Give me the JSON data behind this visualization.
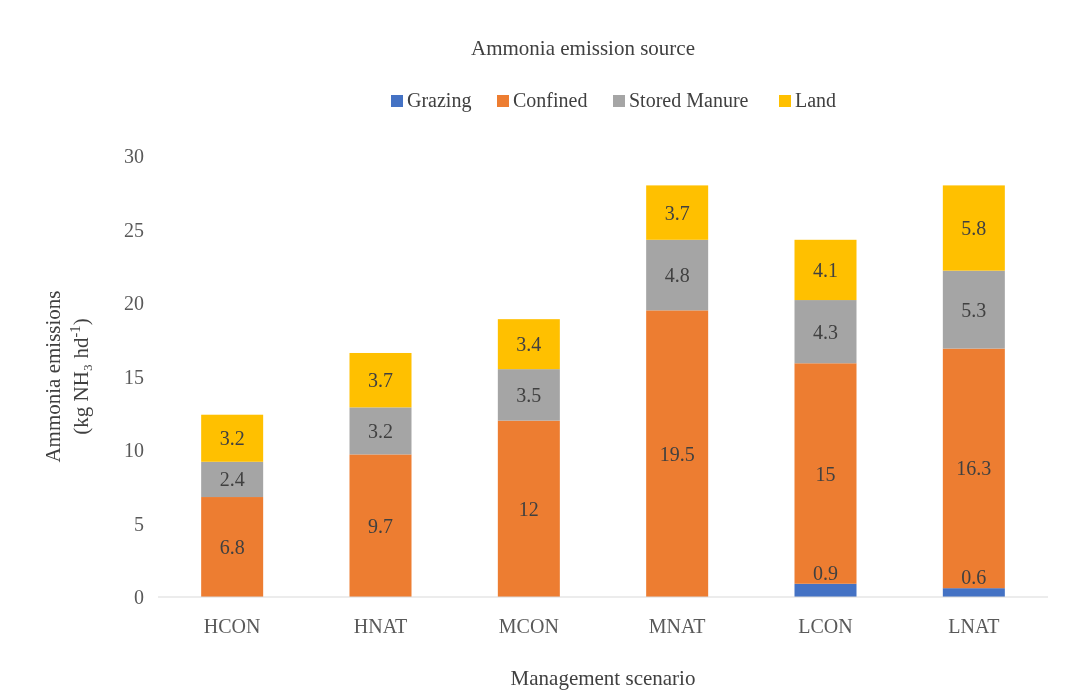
{
  "chart_data": {
    "type": "bar",
    "stacked": true,
    "legend_title": "Ammonia emission source",
    "legend": "top",
    "xlabel": "Management scenario",
    "ylabel": "Ammonia emissions (kg NH₃ hd$^{-1}$)",
    "categories": [
      "HCON",
      "HNAT",
      "MCON",
      "MNAT",
      "LCON",
      "LNAT"
    ],
    "ylim": [
      0,
      30
    ],
    "yticks": [
      0,
      5,
      10,
      15,
      20,
      25,
      30
    ],
    "grid": false,
    "series": [
      {
        "name": "Grazing",
        "color": "#4472c4",
        "values": [
          0,
          0,
          0,
          0,
          0.9,
          0.6
        ],
        "value_labels": [
          null,
          null,
          null,
          null,
          "0.9",
          "0.6"
        ]
      },
      {
        "name": "Confined",
        "color": "#ed7d31",
        "values": [
          6.8,
          9.7,
          12,
          19.5,
          15,
          16.3
        ],
        "value_labels": [
          "6.8",
          "9.7",
          "12",
          "19.5",
          "15",
          "16.3"
        ]
      },
      {
        "name": "Stored Manure",
        "color": "#a5a5a5",
        "values": [
          2.4,
          3.2,
          3.5,
          4.8,
          4.3,
          5.3
        ],
        "value_labels": [
          "2.4",
          "3.2",
          "3.5",
          "4.8",
          "4.3",
          "5.3"
        ]
      },
      {
        "name": "Land",
        "color": "#ffc000",
        "values": [
          3.2,
          3.7,
          3.4,
          3.7,
          4.1,
          5.8
        ],
        "value_labels": [
          "3.2",
          "3.7",
          "3.4",
          "3.7",
          "4.1",
          "5.8"
        ]
      }
    ]
  }
}
